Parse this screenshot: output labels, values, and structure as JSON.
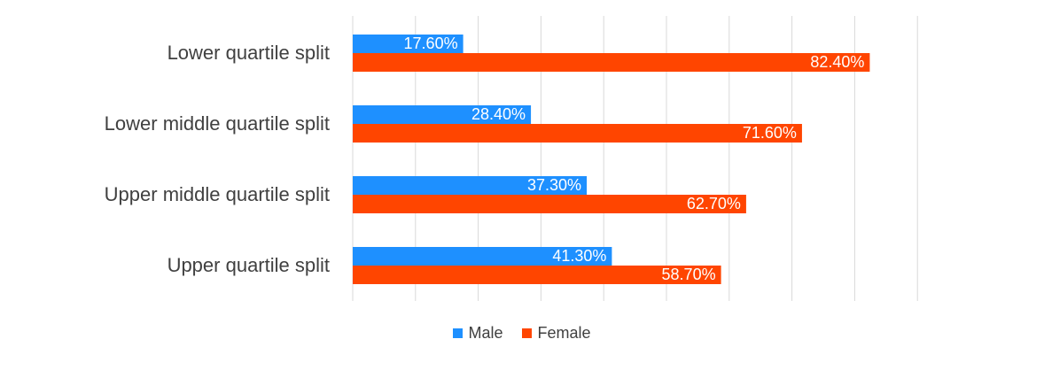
{
  "chart_data": {
    "type": "bar",
    "orientation": "horizontal",
    "categories": [
      "Lower quartile split",
      "Lower middle quartile split",
      "Upper middle quartile split",
      "Upper quartile split"
    ],
    "series": [
      {
        "name": "Male",
        "color": "#1E90FF",
        "values": [
          17.6,
          28.4,
          37.3,
          41.3
        ],
        "labels": [
          "17.60%",
          "28.40%",
          "37.30%",
          "41.30%"
        ]
      },
      {
        "name": "Female",
        "color": "#FF4500",
        "values": [
          82.4,
          71.6,
          62.7,
          58.7
        ],
        "labels": [
          "82.40%",
          "71.60%",
          "62.70%",
          "58.70%"
        ]
      }
    ],
    "xlim": [
      0,
      90
    ],
    "grid": true,
    "legend_position": "bottom"
  }
}
